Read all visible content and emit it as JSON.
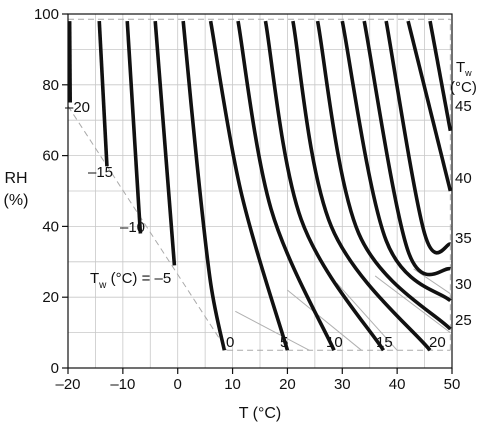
{
  "chart_data": {
    "type": "line",
    "xlabel": "T (°C)",
    "ylabel_line1": "RH",
    "ylabel_line2": "(%)",
    "xlim": [
      -20,
      50
    ],
    "ylim": [
      0,
      100
    ],
    "x_ticks": [
      -20,
      -10,
      0,
      10,
      20,
      30,
      40,
      50
    ],
    "x_tick_labels": [
      "–20",
      "–10",
      "0",
      "10",
      "20",
      "30",
      "40",
      "50"
    ],
    "y_ticks": [
      0,
      20,
      40,
      60,
      80,
      100
    ],
    "y_tick_labels": [
      "0",
      "20",
      "40",
      "60",
      "80",
      "100"
    ],
    "grid": true,
    "legend_title_main": "T",
    "legend_title_sub": "w",
    "legend_title_unit": "(°C)",
    "inline_label_main": "T",
    "inline_label_sub": "w",
    "inline_label_rest": " (°C) = –5",
    "curve_labels": {
      "-20": "–20",
      "-15": "–15",
      "-10": "–10",
      "0": "0",
      "5": "5",
      "10": "10",
      "15": "15",
      "20": "20",
      "25": "25",
      "30": "30",
      "35": "35",
      "40": "40",
      "45": "45"
    },
    "bold_series": [
      {
        "tw": -20,
        "x": [
          -19.7,
          -19.6
        ],
        "y": [
          98,
          75
        ]
      },
      {
        "tw": -15,
        "x": [
          -14.3,
          -12.9
        ],
        "y": [
          98,
          57
        ]
      },
      {
        "tw": -10,
        "x": [
          -9.2,
          -6.8
        ],
        "y": [
          98,
          38
        ]
      },
      {
        "tw": -5,
        "x": [
          -4.1,
          -0.6
        ],
        "y": [
          98,
          29
        ]
      },
      {
        "tw": 0,
        "x": [
          1.0,
          3.5,
          6.0,
          8.5
        ],
        "y": [
          98,
          58,
          24,
          5
        ]
      },
      {
        "tw": 2.5,
        "x": [
          6.0,
          11.5,
          20.0
        ],
        "y": [
          98,
          50,
          5
        ]
      },
      {
        "tw": 5,
        "x": [
          11.0,
          17.0,
          28.5
        ],
        "y": [
          98,
          45,
          5
        ]
      },
      {
        "tw": 7.5,
        "x": [
          16.0,
          22.5,
          37.5
        ],
        "y": [
          98,
          42,
          5
        ]
      },
      {
        "tw": 10,
        "x": [
          21.0,
          28.0,
          46.0
        ],
        "y": [
          98,
          40,
          5
        ]
      },
      {
        "tw": 12.5,
        "x": [
          25.5,
          33.0,
          49.7
        ],
        "y": [
          98,
          38,
          11
        ]
      },
      {
        "tw": 15,
        "x": [
          30.0,
          38.0,
          49.7
        ],
        "y": [
          98,
          36,
          19
        ]
      },
      {
        "tw": 17.5,
        "x": [
          34.0,
          42.0,
          49.7
        ],
        "y": [
          98,
          33,
          28
        ]
      },
      {
        "tw": 20,
        "x": [
          38.0,
          45.0,
          49.7
        ],
        "y": [
          98,
          38,
          35
        ]
      },
      {
        "tw": 22.5,
        "x": [
          42.0,
          49.7
        ],
        "y": [
          98,
          50
        ]
      },
      {
        "tw": 25,
        "x": [
          46.0,
          49.7
        ],
        "y": [
          98,
          67
        ]
      }
    ],
    "thin_series": [
      {
        "tw": 5,
        "x": [
          10.5,
          24.0
        ],
        "y": [
          16,
          5
        ]
      },
      {
        "tw": 10,
        "x": [
          20.0,
          33.5
        ],
        "y": [
          22,
          5
        ]
      },
      {
        "tw": 15,
        "x": [
          29.0,
          40.0
        ],
        "y": [
          24,
          5
        ]
      },
      {
        "tw": 20,
        "x": [
          36.0,
          49.7
        ],
        "y": [
          26,
          10
        ]
      },
      {
        "tw": 25,
        "x": [
          43.0,
          49.7
        ],
        "y": [
          28,
          21
        ]
      }
    ],
    "bounds": {
      "diagonal": {
        "x": [
          -20,
          9
        ],
        "y": [
          74,
          5
        ]
      },
      "bottom_dashed": {
        "x": [
          9,
          49.7
        ],
        "y": [
          5,
          5
        ]
      },
      "top_dashed": {
        "x": [
          -20,
          49.7
        ],
        "y": [
          98.5,
          98.5
        ]
      },
      "right_dashed": {
        "x": [
          49.7,
          49.7
        ],
        "y": [
          5,
          98.5
        ]
      }
    },
    "colors": {
      "bold_curve": "#111111",
      "thin_curve": "#b0b0b0",
      "grid": "#c8c8c8",
      "dashed": "#aaaaaa",
      "axis": "#111111"
    }
  }
}
